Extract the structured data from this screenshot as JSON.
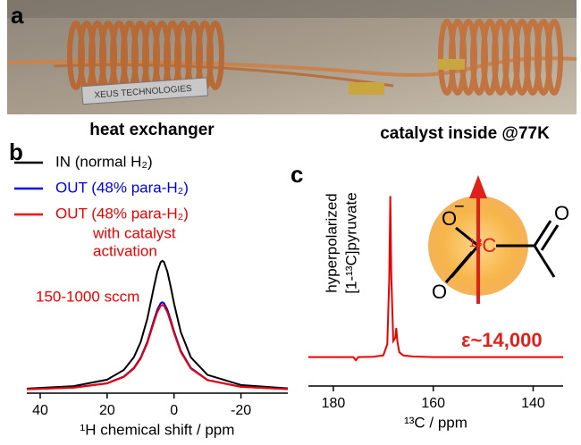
{
  "photo": {
    "label": "a",
    "plate": "XEUS TECHNOLOGIES",
    "captions": [
      "heat exchanger",
      "catalyst inside @77K"
    ]
  },
  "chart_data": [
    {
      "type": "line",
      "label": "b",
      "x": [
        44,
        30,
        20,
        15,
        12,
        10,
        8,
        6,
        5,
        4,
        3.5,
        3,
        2,
        1,
        0,
        -2,
        -5,
        -10,
        -20,
        -34
      ],
      "series": [
        {
          "name": "IN (normal  H₂)",
          "color": "#000000",
          "values": [
            0.015,
            0.034,
            0.084,
            0.159,
            0.257,
            0.372,
            0.552,
            0.8,
            0.917,
            0.99,
            1,
            0.99,
            0.917,
            0.8,
            0.671,
            0.452,
            0.257,
            0.121,
            0.043,
            0.017
          ]
        },
        {
          "name": "OUT (48% para-H₂)",
          "color": "#0000ee",
          "values": [
            0.01,
            0.023,
            0.057,
            0.108,
            0.175,
            0.253,
            0.375,
            0.544,
            0.624,
            0.673,
            0.68,
            0.673,
            0.624,
            0.544,
            0.456,
            0.307,
            0.175,
            0.082,
            0.029,
            0.012
          ]
        },
        {
          "name": "OUT (48% para-H₂)",
          "color": "#ee0000",
          "values": [
            0.01,
            0.022,
            0.055,
            0.105,
            0.17,
            0.246,
            0.364,
            0.528,
            0.605,
            0.653,
            0.66,
            0.653,
            0.605,
            0.528,
            0.443,
            0.298,
            0.17,
            0.08,
            0.028,
            0.011
          ]
        }
      ],
      "annotations": [
        "with catalyst",
        "activation",
        "150-1000 sccm"
      ],
      "xlim": [
        44,
        -34
      ],
      "ylim": [
        -0.02,
        1.77
      ],
      "xticks": [
        40,
        20,
        0,
        -20
      ],
      "x_label": "¹H chemical shift / ppm"
    },
    {
      "type": "line",
      "label": "c",
      "x": [
        185,
        176,
        175.5,
        175,
        172,
        170,
        169.2,
        168.8,
        168.6,
        168.4,
        168,
        167.6,
        167.4,
        167.2,
        166.8,
        166,
        164,
        160,
        150,
        140,
        134
      ],
      "series": [
        {
          "color": "#ee0000",
          "values": [
            0,
            0,
            -0.02,
            0,
            0.002,
            0.01,
            0.08,
            0.5,
            1,
            0.5,
            0.1,
            0.12,
            0.18,
            0.1,
            0.03,
            0.01,
            0.003,
            0,
            0,
            0,
            0
          ]
        }
      ],
      "annotations": [
        "hyperpolarized",
        "[1-¹³C]pyruvate",
        "ε~14,000"
      ],
      "molecule": {
        "atoms": [
          "O",
          "−",
          "O",
          "O",
          "¹³C"
        ]
      },
      "xlim": [
        185,
        134
      ],
      "ylim": [
        -0.18,
        1.08
      ],
      "xticks": [
        180,
        160,
        140
      ],
      "x_label": "¹³C / ppm"
    }
  ]
}
